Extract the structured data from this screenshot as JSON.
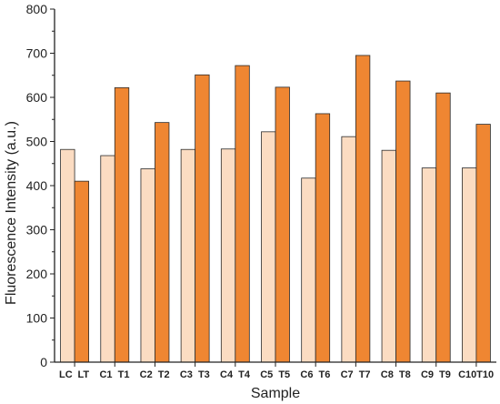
{
  "chart_data": {
    "type": "bar",
    "xlabel": "Sample",
    "ylabel": "Fluorescence Intensity (a.u.)",
    "ylim": [
      0,
      800
    ],
    "yticks": [
      0,
      100,
      200,
      300,
      400,
      500,
      600,
      700,
      800
    ],
    "grid": false,
    "categories": [
      {
        "left": "LC",
        "right": "LT"
      },
      {
        "left": "C1",
        "right": "T1"
      },
      {
        "left": "C2",
        "right": "T2"
      },
      {
        "left": "C3",
        "right": "T3"
      },
      {
        "left": "C4",
        "right": "T4"
      },
      {
        "left": "C5",
        "right": "T5"
      },
      {
        "left": "C6",
        "right": "T6"
      },
      {
        "left": "C7",
        "right": "T7"
      },
      {
        "left": "C8",
        "right": "T8"
      },
      {
        "left": "C9",
        "right": "T9"
      },
      {
        "left": "C10",
        "right": "T10"
      }
    ],
    "series": [
      {
        "color": "#fbdcc2",
        "values": [
          482,
          468,
          438,
          482,
          483,
          522,
          417,
          511,
          480,
          440,
          440
        ]
      },
      {
        "color": "#ef8632",
        "values": [
          410,
          622,
          543,
          651,
          672,
          623,
          563,
          695,
          637,
          610,
          539
        ]
      }
    ]
  }
}
